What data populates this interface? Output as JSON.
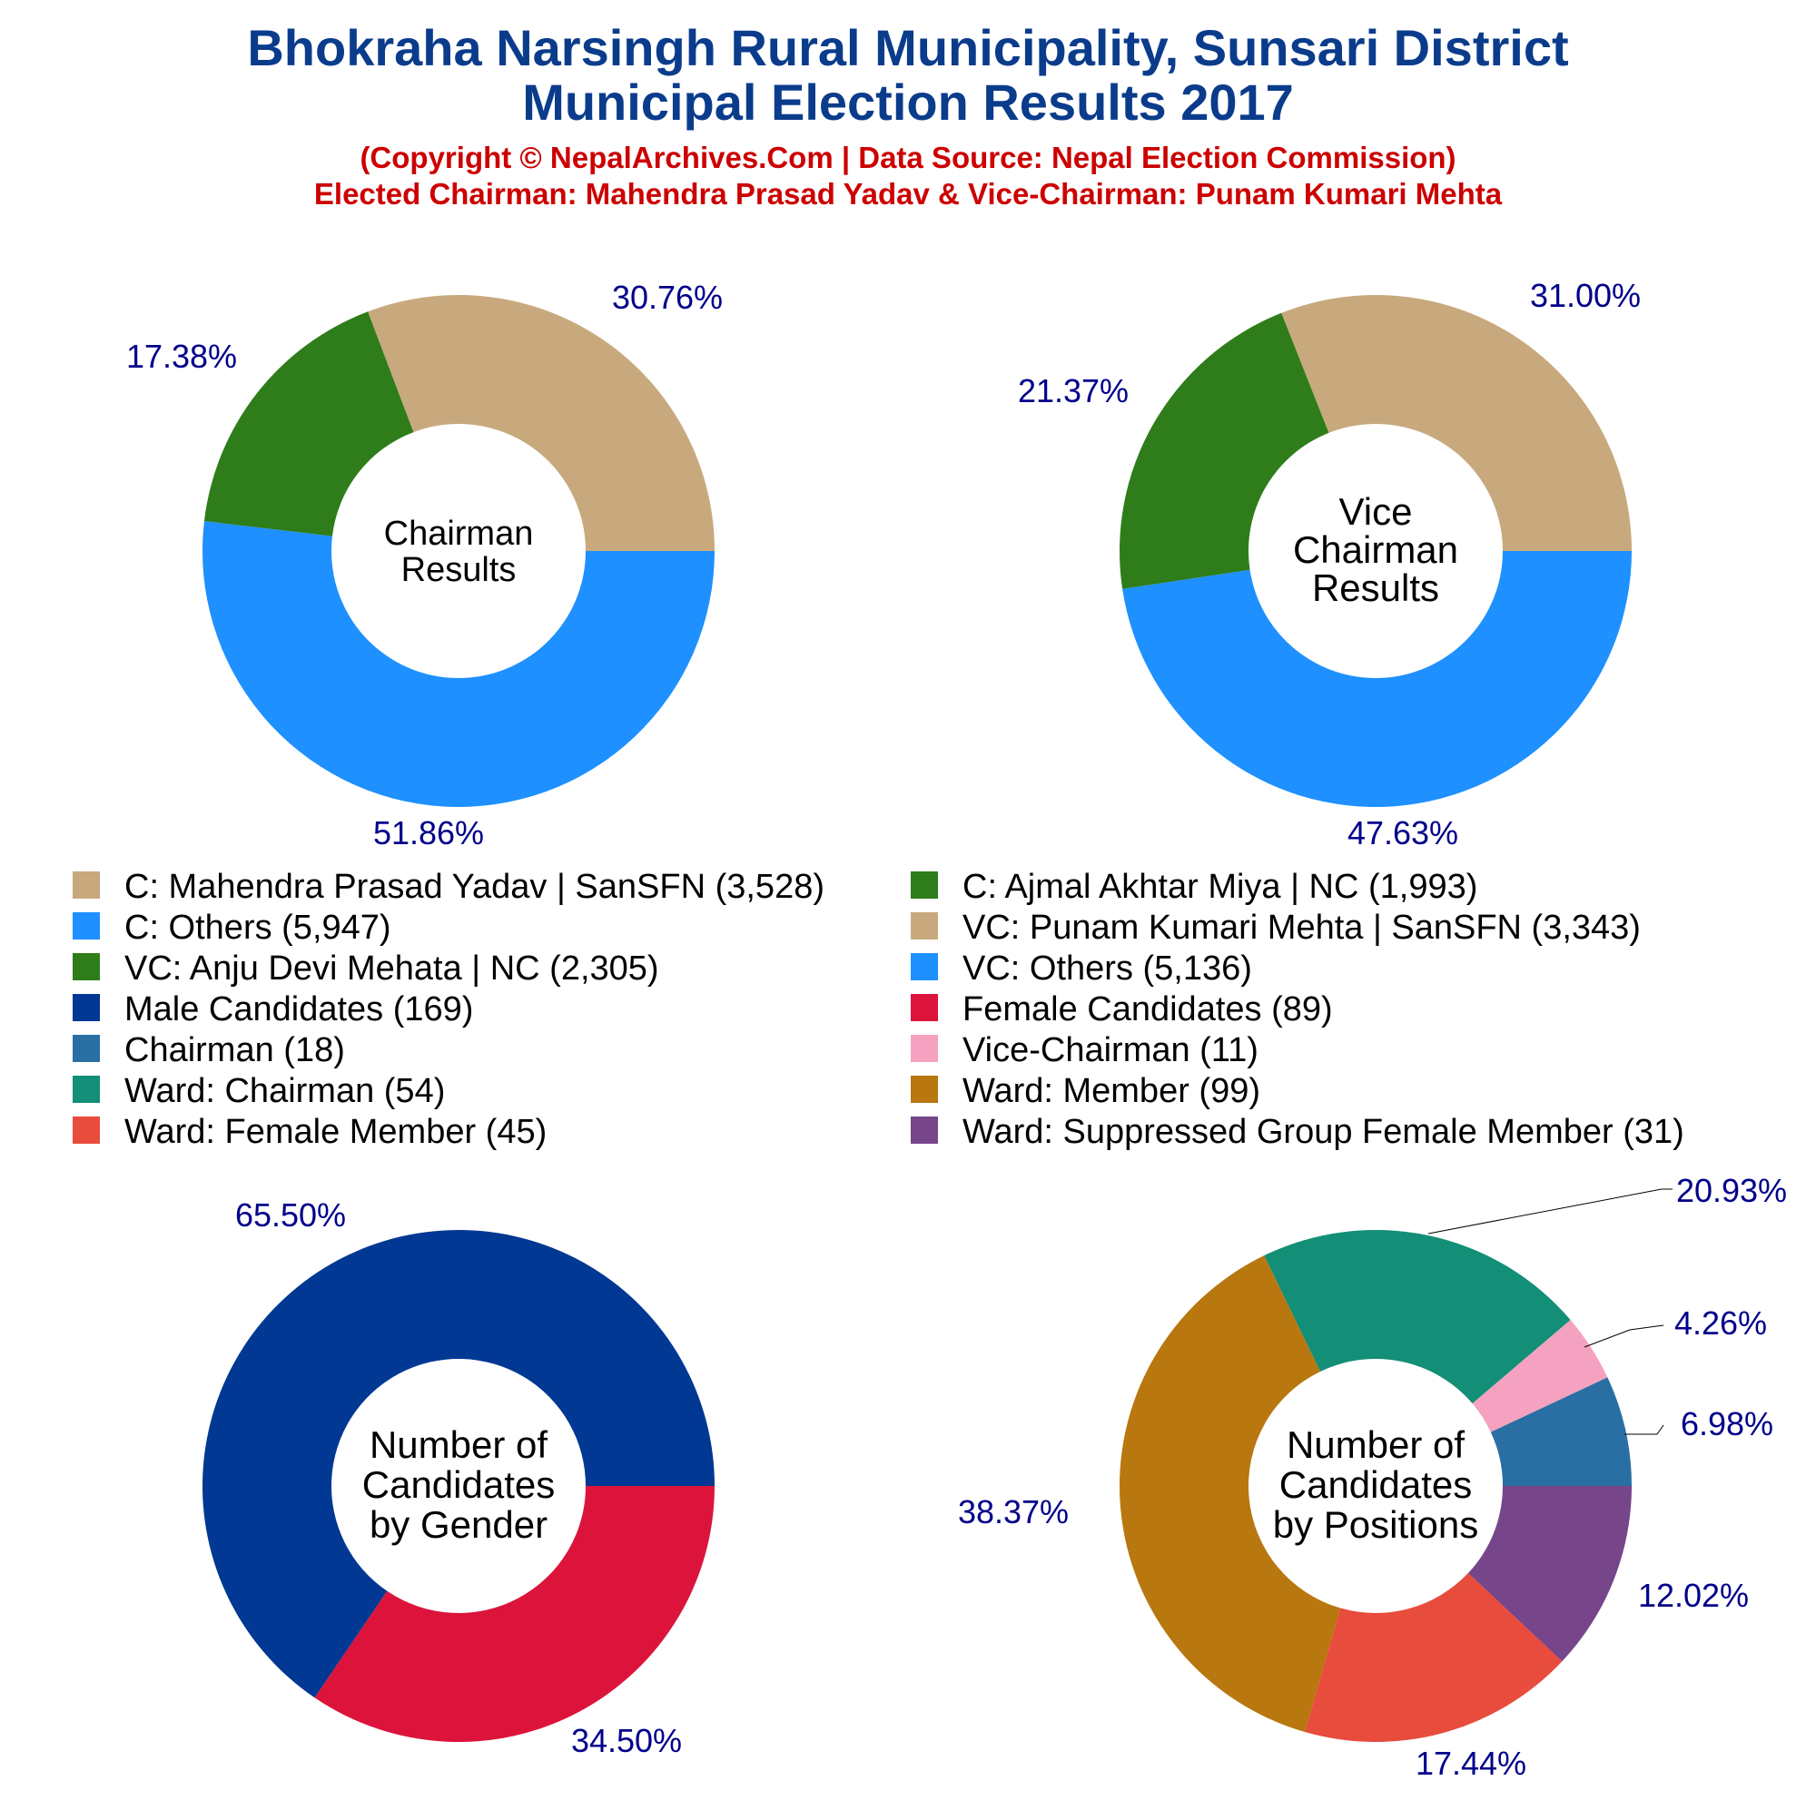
{
  "title_line1": "Bhokraha Narsingh Rural Municipality, Sunsari District",
  "title_line2": "Municipal Election Results 2017",
  "subtitle_line1": "(Copyright © NepalArchives.Com | Data Source: Nepal Election Commission)",
  "subtitle_line2": "Elected Chairman: Mahendra Prasad Yadav & Vice-Chairman: Punam Kumari Mehta",
  "legend": [
    {
      "label": "C: Mahendra Prasad Yadav | SanSFN (3,528)",
      "color": "#C8A97E"
    },
    {
      "label": "C: Ajmal Akhtar Miya | NC (1,993)",
      "color": "#2E7D1A"
    },
    {
      "label": "C: Others (5,947)",
      "color": "#1E90FF"
    },
    {
      "label": "VC: Punam Kumari Mehta | SanSFN (3,343)",
      "color": "#C8A97E"
    },
    {
      "label": "VC: Anju Devi Mehata | NC (2,305)",
      "color": "#2E7D1A"
    },
    {
      "label": "VC: Others (5,136)",
      "color": "#1E90FF"
    },
    {
      "label": "Male Candidates (169)",
      "color": "#003893"
    },
    {
      "label": "Female Candidates (89)",
      "color": "#DC143C"
    },
    {
      "label": "Chairman (18)",
      "color": "#2A6FA3"
    },
    {
      "label": "Vice-Chairman (11)",
      "color": "#F4A2C0"
    },
    {
      "label": "Ward: Chairman (54)",
      "color": "#138E77"
    },
    {
      "label": "Ward: Member (99)",
      "color": "#B8770F"
    },
    {
      "label": "Ward: Female Member (45)",
      "color": "#E84C3D"
    },
    {
      "label": "Ward: Suppressed Group Female Member (31)",
      "color": "#774589"
    }
  ],
  "chart_data": [
    {
      "type": "pie",
      "center_label": [
        "Chairman",
        "Results"
      ],
      "slices": [
        {
          "label": "C: Mahendra Prasad Yadav | SanSFN",
          "value": 3528,
          "percent_label": "30.76%",
          "color": "#C8A97E"
        },
        {
          "label": "C: Ajmal Akhtar Miya | NC",
          "value": 1993,
          "percent_label": "17.38%",
          "color": "#2E7D1A"
        },
        {
          "label": "C: Others",
          "value": 5947,
          "percent_label": "51.86%",
          "color": "#1E90FF"
        }
      ]
    },
    {
      "type": "pie",
      "center_label": [
        "Vice",
        "Chairman",
        "Results"
      ],
      "slices": [
        {
          "label": "VC: Punam Kumari Mehta | SanSFN",
          "value": 3343,
          "percent_label": "31.00%",
          "color": "#C8A97E"
        },
        {
          "label": "VC: Anju Devi Mehata | NC",
          "value": 2305,
          "percent_label": "21.37%",
          "color": "#2E7D1A"
        },
        {
          "label": "VC: Others",
          "value": 5136,
          "percent_label": "47.63%",
          "color": "#1E90FF"
        }
      ]
    },
    {
      "type": "pie",
      "center_label": [
        "Number of",
        "Candidates",
        "by Gender"
      ],
      "slices": [
        {
          "label": "Male Candidates",
          "value": 169,
          "percent_label": "65.50%",
          "color": "#003893"
        },
        {
          "label": "Female Candidates",
          "value": 89,
          "percent_label": "34.50%",
          "color": "#DC143C"
        }
      ]
    },
    {
      "type": "pie",
      "center_label": [
        "Number of",
        "Candidates",
        "by Positions"
      ],
      "slices": [
        {
          "label": "Chairman",
          "value": 18,
          "percent_label": "6.98%",
          "color": "#2A6FA3"
        },
        {
          "label": "Vice-Chairman",
          "value": 11,
          "percent_label": "4.26%",
          "color": "#F4A2C0"
        },
        {
          "label": "Ward: Chairman",
          "value": 54,
          "percent_label": "20.93%",
          "color": "#138E77"
        },
        {
          "label": "Ward: Member",
          "value": 99,
          "percent_label": "38.37%",
          "color": "#B8770F"
        },
        {
          "label": "Ward: Female Member",
          "value": 45,
          "percent_label": "17.44%",
          "color": "#E84C3D"
        },
        {
          "label": "Ward: Suppressed Group Female Member",
          "value": 31,
          "percent_label": "12.02%",
          "color": "#774589"
        }
      ]
    }
  ]
}
